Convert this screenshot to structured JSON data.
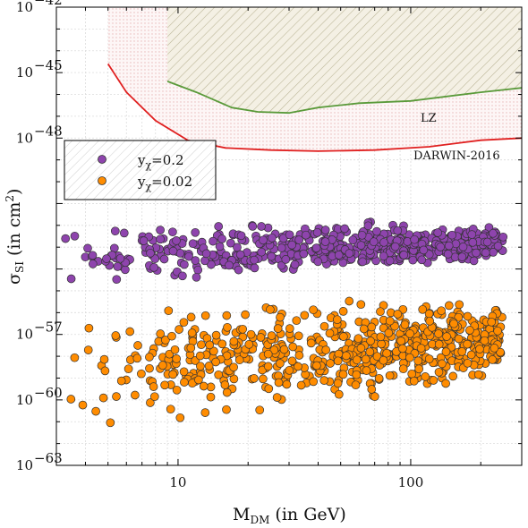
{
  "chart_data": {
    "type": "scatter",
    "xlabel": "M",
    "xlabel_sub": "DM",
    "xlabel_unit": " (in GeV)",
    "ylabel": "σ",
    "ylabel_sub": "SI",
    "ylabel_unit": " (in cm",
    "ylabel_unit_sup": "2",
    "ylabel_unit_end": ")",
    "x_scale": "log",
    "y_scale": "log",
    "xlim": [
      3,
      300
    ],
    "ylim": [
      1e-63,
      1e-42
    ],
    "x_tick_labels": [
      {
        "value": 10,
        "base": "10",
        "exp": ""
      },
      {
        "value": 100,
        "base": "100",
        "exp": ""
      }
    ],
    "y_tick_labels": [
      {
        "value": -42,
        "base": "10",
        "exp": "−42"
      },
      {
        "value": -45,
        "base": "10",
        "exp": "−45"
      },
      {
        "value": -48,
        "base": "10",
        "exp": "−48"
      },
      {
        "value": -57,
        "base": "10",
        "exp": "−57"
      },
      {
        "value": -60,
        "base": "10",
        "exp": "−60"
      },
      {
        "value": -63,
        "base": "10",
        "exp": "−63"
      }
    ],
    "grid": true,
    "legend_position": "upper-left",
    "series": [
      {
        "name": "y",
        "name_sub": "χ",
        "name_rest": "=0.2",
        "color": "#8e44ad",
        "x_range": [
          3,
          250
        ],
        "log_sigma_range": [
          -54.8,
          -51.0
        ],
        "density": "increasing with mass"
      },
      {
        "name": "y",
        "name_sub": "χ",
        "name_rest": "=0.02",
        "color": "#ff8c00",
        "x_range": [
          3,
          250
        ],
        "log_sigma_range": [
          -62.8,
          -55.3
        ],
        "density": "increasing with mass"
      }
    ],
    "limits": [
      {
        "label": "LZ",
        "color": "#5a9a3a",
        "points": [
          [
            9,
            -45.4
          ],
          [
            12,
            -45.9
          ],
          [
            17,
            -46.6
          ],
          [
            22,
            -46.8
          ],
          [
            30,
            -46.85
          ],
          [
            40,
            -46.6
          ],
          [
            60,
            -46.4
          ],
          [
            100,
            -46.3
          ],
          [
            200,
            -45.9
          ],
          [
            300,
            -45.7
          ]
        ]
      },
      {
        "label": "DARWIN-2016",
        "color": "#e02020",
        "points": [
          [
            5,
            -44.6
          ],
          [
            6,
            -45.9
          ],
          [
            8,
            -47.2
          ],
          [
            11,
            -48.1
          ],
          [
            16,
            -48.45
          ],
          [
            25,
            -48.55
          ],
          [
            40,
            -48.6
          ],
          [
            70,
            -48.55
          ],
          [
            120,
            -48.4
          ],
          [
            200,
            -48.1
          ],
          [
            300,
            -48.0
          ]
        ]
      }
    ],
    "excluded_region_start_gev": 5,
    "hatched_region_start_gev": 9
  }
}
